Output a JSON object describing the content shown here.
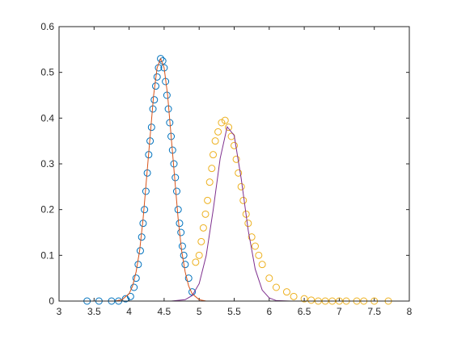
{
  "chart_data": {
    "type": "line",
    "xlim": [
      3,
      8
    ],
    "xticks": [
      3,
      3.5,
      4,
      4.5,
      5,
      5.5,
      6,
      6.5,
      7,
      7.5,
      8
    ],
    "ylim": [
      0,
      0.6
    ],
    "yticks": [
      0,
      0.1,
      0.2,
      0.3,
      0.4,
      0.5,
      0.6
    ],
    "series": [
      {
        "mode": "markers",
        "color": "#0072bd",
        "x": [
          3.4,
          3.57,
          3.75,
          3.85,
          3.95,
          4.02,
          4.07,
          4.1,
          4.13,
          4.16,
          4.18,
          4.2,
          4.22,
          4.24,
          4.26,
          4.28,
          4.3,
          4.32,
          4.34,
          4.36,
          4.38,
          4.4,
          4.42,
          4.45,
          4.48,
          4.5,
          4.52,
          4.54,
          4.56,
          4.58,
          4.6,
          4.62,
          4.64,
          4.66,
          4.68,
          4.7,
          4.72,
          4.74,
          4.76,
          4.78,
          4.8,
          4.85,
          4.9
        ],
        "values": [
          0,
          0,
          0,
          0,
          0.005,
          0.01,
          0.03,
          0.05,
          0.08,
          0.11,
          0.14,
          0.17,
          0.2,
          0.24,
          0.28,
          0.32,
          0.35,
          0.38,
          0.42,
          0.44,
          0.47,
          0.49,
          0.51,
          0.53,
          0.525,
          0.51,
          0.48,
          0.45,
          0.42,
          0.39,
          0.36,
          0.33,
          0.3,
          0.27,
          0.24,
          0.2,
          0.17,
          0.15,
          0.12,
          0.1,
          0.08,
          0.05,
          0.02
        ]
      },
      {
        "mode": "markers",
        "color": "#edb120",
        "x": [
          4.95,
          5.0,
          5.03,
          5.06,
          5.09,
          5.12,
          5.15,
          5.18,
          5.2,
          5.23,
          5.27,
          5.32,
          5.37,
          5.42,
          5.46,
          5.5,
          5.53,
          5.56,
          5.6,
          5.63,
          5.67,
          5.7,
          5.75,
          5.8,
          5.85,
          5.9,
          6.0,
          6.1,
          6.25,
          6.35,
          6.5,
          6.6,
          6.7,
          6.8,
          6.9,
          7.0,
          7.1,
          7.25,
          7.35,
          7.5,
          7.7
        ],
        "values": [
          0.085,
          0.1,
          0.13,
          0.16,
          0.19,
          0.22,
          0.26,
          0.29,
          0.32,
          0.35,
          0.37,
          0.39,
          0.395,
          0.38,
          0.36,
          0.34,
          0.31,
          0.28,
          0.25,
          0.22,
          0.19,
          0.17,
          0.14,
          0.12,
          0.1,
          0.08,
          0.05,
          0.03,
          0.02,
          0.01,
          0.005,
          0.002,
          0,
          0,
          0,
          0,
          0,
          0,
          0,
          0,
          0
        ]
      },
      {
        "mode": "line",
        "color": "#d95319",
        "x": [
          3.4,
          3.8,
          3.9,
          4.0,
          4.05,
          4.1,
          4.15,
          4.2,
          4.25,
          4.3,
          4.35,
          4.4,
          4.45,
          4.5,
          4.55,
          4.6,
          4.65,
          4.7,
          4.75,
          4.8,
          4.85,
          4.9,
          5.0,
          5.1
        ],
        "values": [
          0,
          0,
          0.003,
          0.016,
          0.033,
          0.064,
          0.11,
          0.18,
          0.27,
          0.36,
          0.45,
          0.51,
          0.53,
          0.51,
          0.45,
          0.36,
          0.27,
          0.18,
          0.11,
          0.064,
          0.033,
          0.016,
          0.003,
          0
        ]
      },
      {
        "mode": "line",
        "color": "#7e2f8e",
        "x": [
          4.6,
          4.8,
          4.9,
          5.0,
          5.1,
          5.2,
          5.3,
          5.4,
          5.5,
          5.6,
          5.7,
          5.8,
          5.9,
          6.0,
          6.1,
          6.3
        ],
        "values": [
          0,
          0.003,
          0.012,
          0.038,
          0.099,
          0.199,
          0.312,
          0.381,
          0.362,
          0.268,
          0.155,
          0.07,
          0.024,
          0.007,
          0.001,
          0
        ]
      }
    ]
  }
}
